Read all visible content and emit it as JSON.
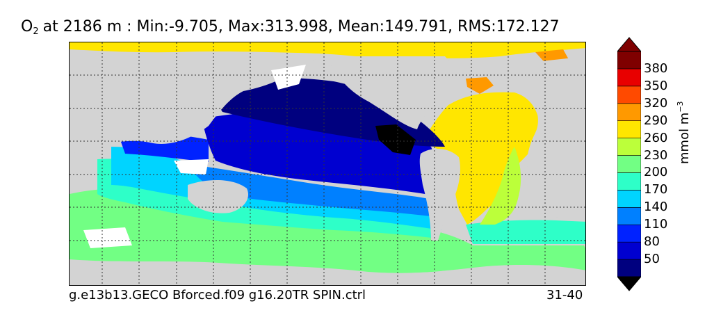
{
  "title": {
    "species_main": "O",
    "species_sub": "2",
    "stats": "at 2186 m : Min:-9.705, Max:313.998, Mean:149.791, RMS:172.127"
  },
  "footer": {
    "run_name": "g.e13b13.GECO Bforced.f09 g16.20TR SPIN.ctrl",
    "years": "31-40"
  },
  "colorbar": {
    "units_main": "mmol m",
    "units_exp": "−3",
    "levels": [
      "50",
      "80",
      "110",
      "140",
      "170",
      "200",
      "230",
      "260",
      "290",
      "320",
      "350",
      "380"
    ],
    "colors": [
      "#00007f",
      "#0000d0",
      "#0022ff",
      "#0080ff",
      "#00d4ff",
      "#2effc8",
      "#72ff84",
      "#bcff3a",
      "#ffe600",
      "#ff9900",
      "#ff4a00",
      "#e80000",
      "#7f0000"
    ]
  },
  "map": {
    "land_color": "#d3d3d3",
    "missing_color": "#ffffff",
    "anoxic_color": "#000000"
  }
}
